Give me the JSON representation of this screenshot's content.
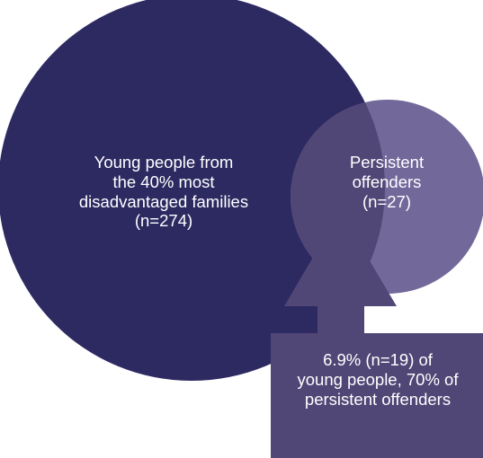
{
  "diagram": {
    "type": "venn",
    "colors": {
      "large_set": "#2d2a62",
      "small_set": "#72689a",
      "overlap": "#514776",
      "callout": "#514776",
      "text": "#ffffff",
      "background": "#ffffff"
    },
    "sets": [
      {
        "id": "disadvantaged",
        "label_lines": [
          "Young people from",
          "the 40% most",
          "disadvantaged families",
          "(n=274)"
        ],
        "n": 274
      },
      {
        "id": "persistent",
        "label_lines": [
          "Persistent",
          "offenders",
          "(n=27)"
        ],
        "n": 27
      }
    ],
    "overlap": {
      "label_lines": [
        "6.9% (n=19) of",
        "young people, 70% of",
        "persistent offenders"
      ],
      "n": 19,
      "percent_of_young_people": 6.9,
      "percent_of_persistent_offenders": 70
    }
  }
}
